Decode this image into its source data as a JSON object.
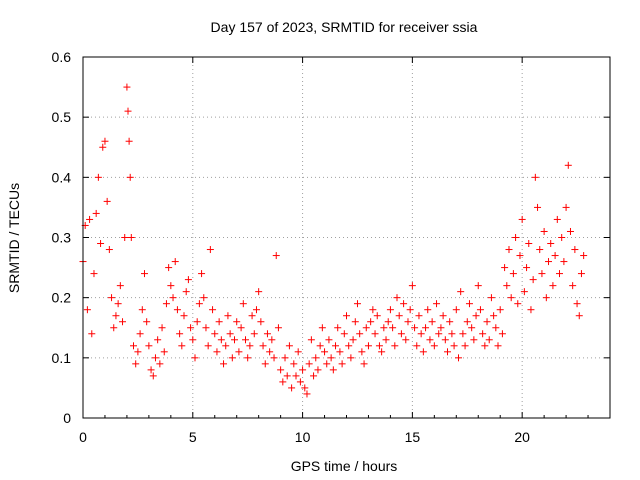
{
  "chart_data": {
    "type": "scatter",
    "title": "Day 157 of 2023, SRMTID for receiver ssia",
    "xlabel": "GPS time / hours",
    "ylabel": "SRMTID / TECUs",
    "xlim": [
      0,
      24
    ],
    "ylim": [
      0,
      0.6
    ],
    "xticks": [
      0,
      5,
      10,
      15,
      20
    ],
    "yticks": [
      0,
      0.1,
      0.2,
      0.3,
      0.4,
      0.5,
      0.6
    ],
    "xtick_labels": [
      "0",
      "5",
      "10",
      "15",
      "20"
    ],
    "ytick_labels": [
      "0",
      "0.1",
      "0.2",
      "0.3",
      "0.4",
      "0.5",
      "0.6"
    ],
    "grid": true,
    "marker": "+",
    "color": "#ff0000",
    "series": [
      {
        "name": "SRMTID",
        "x": [
          0.0,
          0.1,
          0.2,
          0.3,
          0.4,
          0.5,
          0.6,
          0.7,
          0.8,
          0.9,
          1.0,
          1.1,
          1.2,
          1.3,
          1.4,
          1.5,
          1.6,
          1.7,
          1.8,
          1.9,
          2.0,
          2.05,
          2.1,
          2.15,
          2.2,
          2.3,
          2.4,
          2.5,
          2.6,
          2.7,
          2.8,
          2.9,
          3.0,
          3.1,
          3.2,
          3.3,
          3.4,
          3.5,
          3.6,
          3.7,
          3.8,
          3.9,
          4.0,
          4.1,
          4.2,
          4.3,
          4.4,
          4.5,
          4.6,
          4.7,
          4.8,
          4.9,
          5.0,
          5.1,
          5.2,
          5.3,
          5.4,
          5.5,
          5.6,
          5.7,
          5.8,
          5.9,
          6.0,
          6.1,
          6.2,
          6.3,
          6.4,
          6.5,
          6.6,
          6.7,
          6.8,
          6.9,
          7.0,
          7.1,
          7.2,
          7.3,
          7.4,
          7.5,
          7.6,
          7.7,
          7.8,
          7.9,
          8.0,
          8.1,
          8.2,
          8.3,
          8.4,
          8.5,
          8.6,
          8.7,
          8.8,
          8.9,
          9.0,
          9.1,
          9.2,
          9.3,
          9.4,
          9.5,
          9.6,
          9.7,
          9.8,
          9.9,
          10.0,
          10.1,
          10.2,
          10.3,
          10.4,
          10.5,
          10.6,
          10.7,
          10.8,
          10.9,
          11.0,
          11.1,
          11.2,
          11.3,
          11.4,
          11.5,
          11.6,
          11.7,
          11.8,
          11.9,
          12.0,
          12.1,
          12.2,
          12.3,
          12.4,
          12.5,
          12.6,
          12.7,
          12.8,
          12.9,
          13.0,
          13.1,
          13.2,
          13.3,
          13.4,
          13.5,
          13.6,
          13.7,
          13.8,
          13.9,
          14.0,
          14.1,
          14.2,
          14.3,
          14.4,
          14.5,
          14.6,
          14.7,
          14.8,
          14.9,
          15.0,
          15.1,
          15.2,
          15.3,
          15.4,
          15.5,
          15.6,
          15.7,
          15.8,
          15.9,
          16.0,
          16.1,
          16.2,
          16.3,
          16.4,
          16.5,
          16.6,
          16.7,
          16.8,
          16.9,
          17.0,
          17.1,
          17.2,
          17.3,
          17.4,
          17.5,
          17.6,
          17.7,
          17.8,
          17.9,
          18.0,
          18.1,
          18.2,
          18.3,
          18.4,
          18.5,
          18.6,
          18.7,
          18.8,
          18.9,
          19.0,
          19.1,
          19.2,
          19.3,
          19.4,
          19.5,
          19.6,
          19.7,
          19.8,
          19.9,
          20.0,
          20.1,
          20.2,
          20.3,
          20.4,
          20.5,
          20.6,
          20.7,
          20.8,
          20.9,
          21.0,
          21.1,
          21.2,
          21.3,
          21.4,
          21.5,
          21.6,
          21.7,
          21.8,
          21.9,
          22.0,
          22.1,
          22.2,
          22.3,
          22.4,
          22.5,
          22.6,
          22.7,
          22.8
        ],
        "y": [
          0.26,
          0.32,
          0.18,
          0.33,
          0.14,
          0.24,
          0.34,
          0.4,
          0.29,
          0.45,
          0.46,
          0.36,
          0.28,
          0.2,
          0.15,
          0.17,
          0.19,
          0.22,
          0.16,
          0.3,
          0.55,
          0.51,
          0.46,
          0.4,
          0.3,
          0.12,
          0.09,
          0.11,
          0.14,
          0.18,
          0.24,
          0.16,
          0.12,
          0.08,
          0.07,
          0.1,
          0.13,
          0.09,
          0.15,
          0.11,
          0.19,
          0.25,
          0.22,
          0.2,
          0.26,
          0.18,
          0.14,
          0.12,
          0.17,
          0.21,
          0.23,
          0.15,
          0.13,
          0.1,
          0.16,
          0.19,
          0.24,
          0.2,
          0.15,
          0.12,
          0.28,
          0.18,
          0.14,
          0.11,
          0.16,
          0.13,
          0.09,
          0.12,
          0.17,
          0.14,
          0.1,
          0.13,
          0.16,
          0.11,
          0.15,
          0.19,
          0.13,
          0.1,
          0.12,
          0.17,
          0.14,
          0.18,
          0.21,
          0.16,
          0.12,
          0.09,
          0.14,
          0.11,
          0.13,
          0.1,
          0.27,
          0.15,
          0.08,
          0.06,
          0.1,
          0.07,
          0.12,
          0.05,
          0.09,
          0.07,
          0.11,
          0.06,
          0.08,
          0.05,
          0.04,
          0.09,
          0.13,
          0.07,
          0.1,
          0.08,
          0.12,
          0.15,
          0.11,
          0.09,
          0.13,
          0.1,
          0.08,
          0.12,
          0.15,
          0.11,
          0.09,
          0.14,
          0.17,
          0.12,
          0.1,
          0.13,
          0.16,
          0.19,
          0.14,
          0.11,
          0.09,
          0.15,
          0.12,
          0.16,
          0.18,
          0.14,
          0.17,
          0.12,
          0.11,
          0.15,
          0.13,
          0.16,
          0.18,
          0.15,
          0.12,
          0.2,
          0.17,
          0.14,
          0.19,
          0.13,
          0.16,
          0.18,
          0.22,
          0.15,
          0.12,
          0.17,
          0.14,
          0.11,
          0.15,
          0.18,
          0.13,
          0.16,
          0.12,
          0.19,
          0.14,
          0.15,
          0.17,
          0.13,
          0.11,
          0.16,
          0.14,
          0.12,
          0.18,
          0.1,
          0.21,
          0.14,
          0.12,
          0.16,
          0.19,
          0.15,
          0.13,
          0.17,
          0.22,
          0.18,
          0.14,
          0.12,
          0.16,
          0.13,
          0.2,
          0.17,
          0.15,
          0.12,
          0.18,
          0.14,
          0.25,
          0.22,
          0.28,
          0.2,
          0.24,
          0.3,
          0.19,
          0.27,
          0.33,
          0.21,
          0.25,
          0.29,
          0.18,
          0.23,
          0.4,
          0.35,
          0.28,
          0.24,
          0.31,
          0.2,
          0.26,
          0.29,
          0.22,
          0.27,
          0.33,
          0.24,
          0.3,
          0.26,
          0.35,
          0.42,
          0.31,
          0.22,
          0.28,
          0.19,
          0.17,
          0.24,
          0.27
        ]
      }
    ]
  }
}
